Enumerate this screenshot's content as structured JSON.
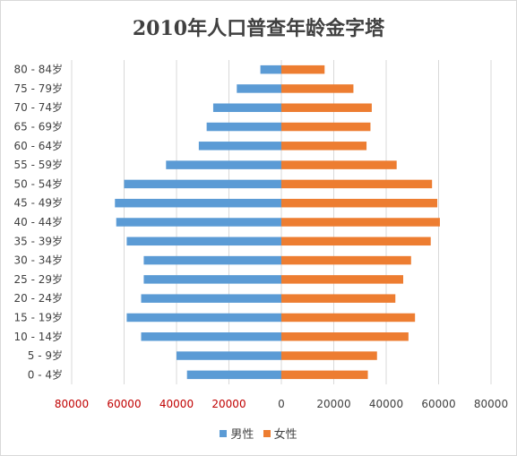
{
  "chart_data": {
    "type": "bar",
    "orientation": "horizontal",
    "title": "2010年人口普查年龄金字塔",
    "categories": [
      "80 - 84岁",
      "75 - 79岁",
      "70 - 74岁",
      "65 - 69岁",
      "60 - 64岁",
      "55 - 59岁",
      "50 - 54岁",
      "45 - 49岁",
      "40 - 44岁",
      "35 - 39岁",
      "30 - 34岁",
      "25 - 29岁",
      "20 - 24岁",
      "15 - 19岁",
      "10 - 14岁",
      "5 - 9岁",
      "0 - 4岁"
    ],
    "series": [
      {
        "name": "男性",
        "color": "#5b9bd5",
        "values": [
          -8000,
          -17000,
          -26000,
          -28500,
          -31500,
          -44000,
          -60000,
          -63500,
          -63000,
          -59000,
          -52500,
          -52500,
          -53500,
          -59000,
          -53500,
          -40000,
          -36000
        ]
      },
      {
        "name": "女性",
        "color": "#ed7d31",
        "values": [
          16500,
          27500,
          34500,
          34000,
          32500,
          44000,
          57500,
          59500,
          60500,
          57000,
          49500,
          46500,
          43500,
          51000,
          48500,
          36500,
          33000
        ]
      }
    ],
    "x_ticks": [
      -80000,
      -60000,
      -40000,
      -20000,
      0,
      20000,
      40000,
      60000,
      80000
    ],
    "x_tick_labels": [
      "80000",
      "60000",
      "40000",
      "20000",
      "0",
      "20000",
      "40000",
      "60000",
      "80000"
    ],
    "negative_tick_color": "#c00000",
    "positive_tick_color": "#404040",
    "xlim": [
      -80000,
      80000
    ],
    "grid": "vertical",
    "legend_position": "bottom"
  }
}
